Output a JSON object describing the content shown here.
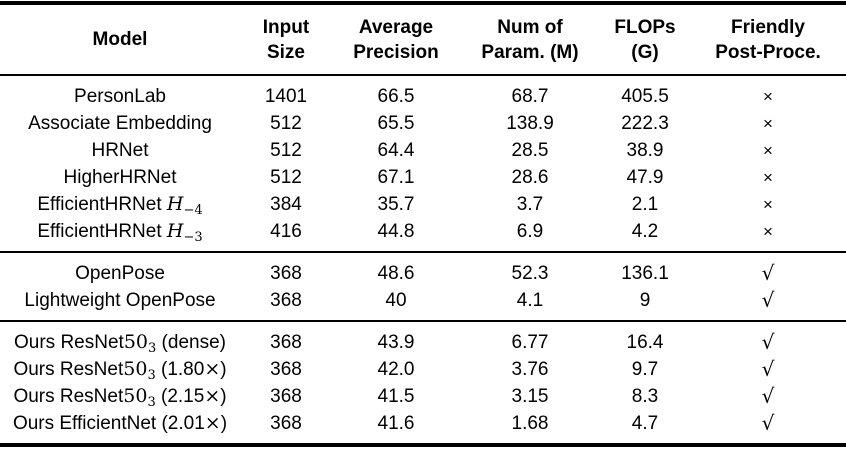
{
  "colors": {
    "background": "#ffffff",
    "text": "#000000",
    "rule": "#000000"
  },
  "symbols": {
    "yes": "√",
    "no": "×"
  },
  "columns": [
    {
      "id": "model",
      "header": [
        "Model"
      ]
    },
    {
      "id": "input-size",
      "header": [
        "Input",
        "Size"
      ]
    },
    {
      "id": "avg-precision",
      "header": [
        "Average",
        "Precision"
      ]
    },
    {
      "id": "num-params",
      "header": [
        "Num of",
        "Param. (M)"
      ]
    },
    {
      "id": "flops",
      "header": [
        "FLOPs",
        "(G)"
      ]
    },
    {
      "id": "friendly",
      "header": [
        "Friendly",
        "Post-Proce."
      ]
    }
  ],
  "sections": [
    {
      "name": "heatmap-based-methods",
      "rows": [
        {
          "model": [
            {
              "t": "PersonLab"
            }
          ],
          "input_size": "1401",
          "avg_precision": "66.5",
          "num_params": "68.7",
          "flops": "405.5",
          "friendly": "no"
        },
        {
          "model": [
            {
              "t": "Associate Embedding"
            }
          ],
          "input_size": "512",
          "avg_precision": "65.5",
          "num_params": "138.9",
          "flops": "222.3",
          "friendly": "no"
        },
        {
          "model": [
            {
              "t": "HRNet"
            }
          ],
          "input_size": "512",
          "avg_precision": "64.4",
          "num_params": "28.5",
          "flops": "38.9",
          "friendly": "no"
        },
        {
          "model": [
            {
              "t": "HigherHRNet"
            }
          ],
          "input_size": "512",
          "avg_precision": "67.1",
          "num_params": "28.6",
          "flops": "47.9",
          "friendly": "no"
        },
        {
          "model": [
            {
              "t": "EfficientHRNet "
            },
            {
              "t": "H",
              "s": "mvar"
            },
            {
              "t": "−4",
              "s": "msub"
            }
          ],
          "input_size": "384",
          "avg_precision": "35.7",
          "num_params": "3.7",
          "flops": "2.1",
          "friendly": "no"
        },
        {
          "model": [
            {
              "t": "EfficientHRNet "
            },
            {
              "t": "H",
              "s": "mvar"
            },
            {
              "t": "−3",
              "s": "msub"
            }
          ],
          "input_size": "416",
          "avg_precision": "44.8",
          "num_params": "6.9",
          "flops": "4.2",
          "friendly": "no"
        }
      ]
    },
    {
      "name": "openpose-methods",
      "rows": [
        {
          "model": [
            {
              "t": "OpenPose"
            }
          ],
          "input_size": "368",
          "avg_precision": "48.6",
          "num_params": "52.3",
          "flops": "136.1",
          "friendly": "yes"
        },
        {
          "model": [
            {
              "t": "Lightweight OpenPose"
            }
          ],
          "input_size": "368",
          "avg_precision": "40",
          "num_params": "4.1",
          "flops": "9",
          "friendly": "yes"
        }
      ]
    },
    {
      "name": "ours-methods",
      "rows": [
        {
          "model": [
            {
              "t": "Ours ResNet"
            },
            {
              "t": "50",
              "s": "mnum"
            },
            {
              "t": "3",
              "s": "msub"
            },
            {
              "t": " (dense)"
            }
          ],
          "input_size": "368",
          "avg_precision": "43.9",
          "num_params": "6.77",
          "flops": "16.4",
          "friendly": "yes"
        },
        {
          "model": [
            {
              "t": "Ours ResNet"
            },
            {
              "t": "50",
              "s": "mnum"
            },
            {
              "t": "3",
              "s": "msub"
            },
            {
              "t": " (1.80"
            },
            {
              "t": "×",
              "s": "mtimes"
            },
            {
              "t": ")"
            }
          ],
          "input_size": "368",
          "avg_precision": "42.0",
          "num_params": "3.76",
          "flops": "9.7",
          "friendly": "yes"
        },
        {
          "model": [
            {
              "t": "Ours ResNet"
            },
            {
              "t": "50",
              "s": "mnum"
            },
            {
              "t": "3",
              "s": "msub"
            },
            {
              "t": " (2.15"
            },
            {
              "t": "×",
              "s": "mtimes"
            },
            {
              "t": ")"
            }
          ],
          "input_size": "368",
          "avg_precision": "41.5",
          "num_params": "3.15",
          "flops": "8.3",
          "friendly": "yes"
        },
        {
          "model": [
            {
              "t": "Ours EfficientNet (2.01"
            },
            {
              "t": "×",
              "s": "mtimes"
            },
            {
              "t": ")"
            }
          ],
          "input_size": "368",
          "avg_precision": "41.6",
          "num_params": "1.68",
          "flops": "4.7",
          "friendly": "yes"
        }
      ]
    }
  ]
}
